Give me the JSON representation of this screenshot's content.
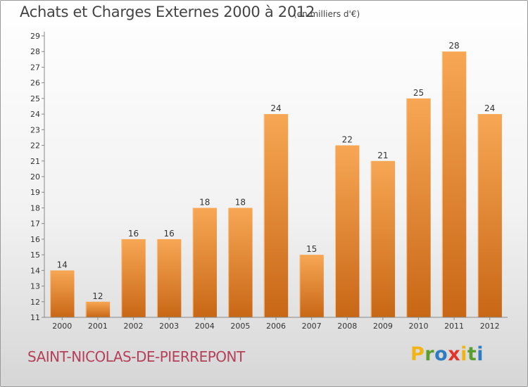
{
  "title": "Achats et Charges Externes 2000 à 2012",
  "unit": "(en milliers d'€)",
  "commune": "SAINT-NICOLAS-DE-PIERREPONT",
  "logo": {
    "letters": [
      "P",
      "r",
      "o",
      "x",
      "i",
      "t",
      "i"
    ],
    "colors": [
      "#f2b315",
      "#5a9e2f",
      "#2f7cc1",
      "#e2342b",
      "#f2b315",
      "#5a9e2f",
      "#2f7cc1"
    ]
  },
  "colors": {
    "bar_light": "#f7a754",
    "bar_dark": "#c86716",
    "commune": "#b5405a"
  },
  "chart_data": {
    "type": "bar",
    "categories": [
      "2000",
      "2001",
      "2002",
      "2003",
      "2004",
      "2005",
      "2006",
      "2007",
      "2008",
      "2009",
      "2010",
      "2011",
      "2012"
    ],
    "values": [
      14,
      12,
      16,
      16,
      18,
      18,
      24,
      15,
      22,
      21,
      25,
      28,
      24
    ],
    "title": "Achats et Charges Externes 2000 à 2012",
    "xlabel": "",
    "ylabel": "",
    "ylim": [
      11,
      29
    ],
    "yticks": [
      11,
      12,
      13,
      14,
      15,
      16,
      17,
      18,
      19,
      20,
      21,
      22,
      23,
      24,
      25,
      26,
      27,
      28,
      29
    ],
    "grid": false,
    "data_labels": true
  }
}
